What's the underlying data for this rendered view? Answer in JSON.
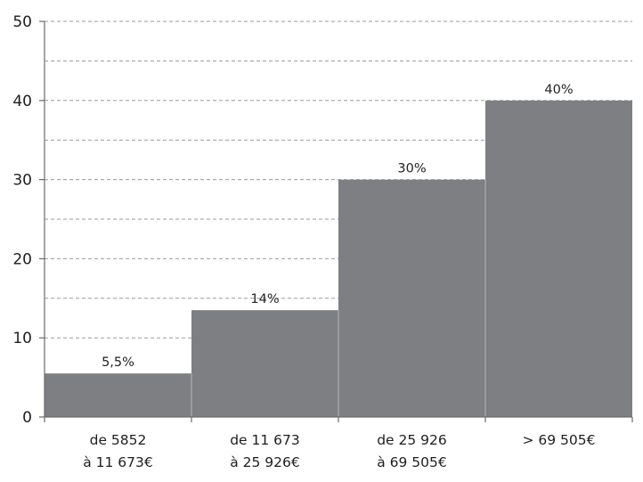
{
  "chart_data": {
    "type": "bar",
    "title": "",
    "xlabel": "",
    "ylabel": "",
    "categories": [
      [
        "de 5852",
        "à 11 673€"
      ],
      [
        "de 11 673",
        "à 25 926€"
      ],
      [
        "de 25 926",
        "à 69 505€"
      ],
      [
        "> 69 505€"
      ]
    ],
    "values": [
      5.5,
      13.5,
      30,
      40
    ],
    "data_labels": [
      "5,5%",
      "14%",
      "30%",
      "40%"
    ],
    "ylim": [
      0,
      50
    ],
    "yticks": [
      0,
      10,
      20,
      30,
      40,
      50
    ],
    "grid": "dashed, every 5 units",
    "legend": "none",
    "colors": {
      "bar": "#7e7f83",
      "bar_separator": "#b5b6b9",
      "axis": "#6a6a6a",
      "grid": "#9a9a9a",
      "text": "#1e1e1e"
    }
  }
}
